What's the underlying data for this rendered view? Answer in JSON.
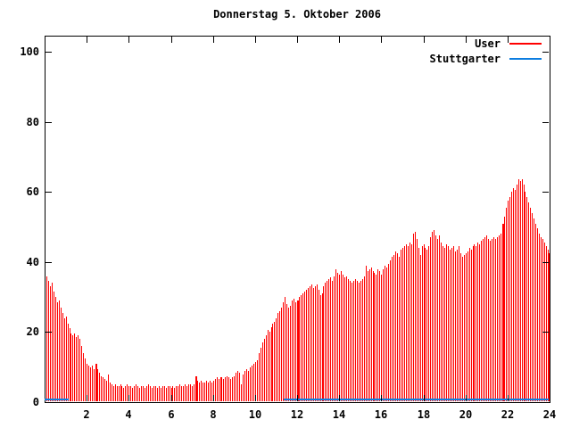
{
  "title": "Donnerstag 5. Oktober 2006",
  "colors": {
    "background": "#ffffff",
    "axis": "#000000",
    "user": "#ff0000",
    "stuttgarter": "#0d7de0"
  },
  "legend": [
    {
      "label": "User",
      "color_key": "user"
    },
    {
      "label": "Stuttgarter",
      "color_key": "stuttgarter"
    }
  ],
  "chart_data": {
    "type": "bar",
    "title": "Donnerstag 5. Oktober 2006",
    "xlabel": "",
    "ylabel": "",
    "xlim": [
      0,
      24
    ],
    "ylim": [
      0,
      105
    ],
    "x_ticks": [
      2,
      4,
      6,
      8,
      10,
      12,
      14,
      16,
      18,
      20,
      22,
      24
    ],
    "y_ticks": [
      0,
      20,
      40,
      60,
      80,
      100
    ],
    "grid": false,
    "legend_position": "top-right-inside",
    "series": [
      {
        "name": "User",
        "style": "impulses",
        "interval_minutes": 5,
        "highlight_indices": [
          28,
          85,
          143,
          260
        ],
        "values": [
          36,
          34.5,
          33,
          34,
          31.5,
          30,
          28.5,
          29,
          27,
          25.5,
          24,
          24.5,
          22.5,
          21,
          19.5,
          19,
          19.5,
          18.5,
          19,
          18,
          16,
          14,
          12.5,
          11,
          10.5,
          10,
          10.5,
          9.5,
          11,
          9.5,
          8.5,
          7.5,
          7,
          6.5,
          6,
          8,
          5.5,
          5,
          4.5,
          5,
          4.5,
          4.5,
          5,
          4.5,
          4,
          4.5,
          5,
          4.5,
          4.5,
          4,
          4.5,
          5,
          4.5,
          4,
          4.5,
          4.5,
          4,
          4.5,
          5,
          4.5,
          4,
          4.5,
          4.5,
          4,
          4.5,
          4,
          4.5,
          4.5,
          4,
          4.5,
          4.5,
          4,
          4.5,
          4,
          4.5,
          4.5,
          5,
          4.5,
          4.5,
          5,
          4.5,
          5,
          5,
          4.5,
          5,
          7.5,
          6,
          5.5,
          6,
          5.5,
          5.5,
          6,
          5.5,
          6,
          5.5,
          6,
          6.5,
          7,
          6.5,
          7,
          7,
          6.5,
          7,
          7.5,
          7,
          6.5,
          7,
          7.5,
          8.5,
          9,
          8.5,
          5,
          8,
          9,
          9.5,
          9,
          10,
          10.5,
          11,
          11.5,
          12,
          14,
          15.5,
          17,
          18,
          19,
          20.5,
          20,
          21.5,
          22.5,
          23,
          24,
          25.5,
          26,
          27,
          28.5,
          30,
          28,
          27,
          27.5,
          29,
          29.5,
          28.5,
          29,
          30,
          30.5,
          31,
          31.5,
          32,
          32.5,
          33,
          33.5,
          32.5,
          33,
          33.5,
          32,
          30.5,
          31,
          33,
          34,
          34.5,
          35,
          35.5,
          34.5,
          36,
          38,
          37,
          36.5,
          37.5,
          36.5,
          35.5,
          36,
          35,
          34.5,
          34,
          34.5,
          35,
          34.5,
          34,
          34.5,
          35,
          36,
          39,
          37.5,
          38,
          38.5,
          37.5,
          37,
          36.5,
          38,
          37.5,
          36.5,
          38,
          39,
          38.5,
          39.5,
          40.5,
          41.5,
          42,
          43,
          42.5,
          41.5,
          43.5,
          44,
          44.5,
          45,
          44.5,
          45.5,
          45,
          48,
          48.5,
          46.5,
          44,
          42,
          44.5,
          45,
          44,
          43.5,
          44.5,
          47,
          48.5,
          49,
          47.5,
          46.5,
          47.5,
          45.5,
          44.5,
          44,
          45,
          44.5,
          43.5,
          44,
          44.5,
          43,
          43.5,
          44.5,
          42.5,
          41.5,
          42,
          42.5,
          43,
          44,
          43.5,
          44.5,
          45,
          44.5,
          45.5,
          45,
          46,
          46.5,
          47,
          47.5,
          46.5,
          46,
          46.5,
          47,
          46.5,
          47,
          47.5,
          48,
          51,
          53,
          55.5,
          57.5,
          58.5,
          60,
          61,
          60.5,
          62,
          63.5,
          63,
          63.5,
          62,
          60,
          58.5,
          57,
          55.5,
          54,
          52.5,
          51,
          49.5,
          48,
          47,
          46.5,
          45.5,
          44.5,
          43.5,
          42.5
        ]
      },
      {
        "name": "Stuttgarter",
        "style": "line",
        "value_approx": 1,
        "segments": [
          {
            "x_start": 0,
            "x_end": 1.15,
            "y": 1
          },
          {
            "x_start": 11.35,
            "x_end": 24,
            "y": 1
          }
        ]
      }
    ]
  }
}
